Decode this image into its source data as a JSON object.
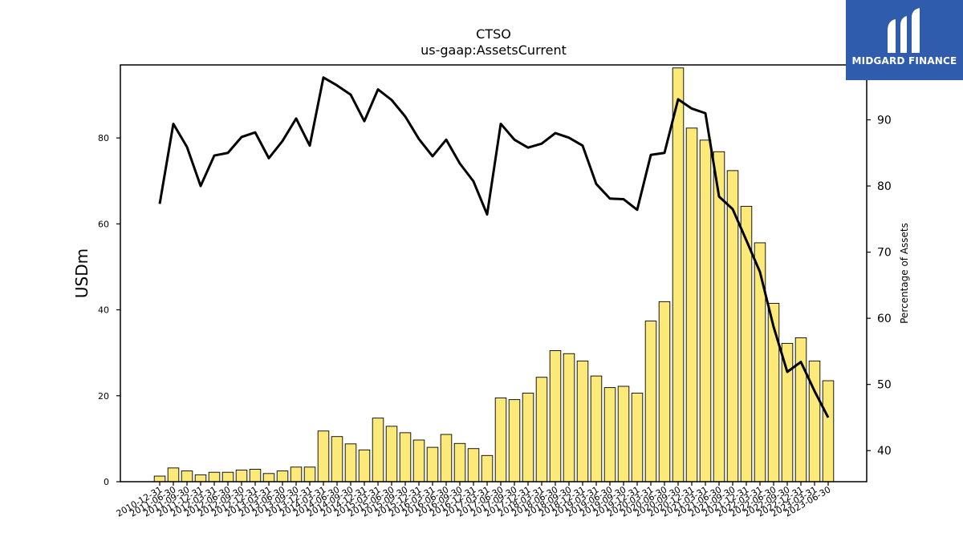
{
  "brand": {
    "name": "MIDGARD FINANCE",
    "bg_color": "#2f5cad",
    "icon": "midgard-logo-icon"
  },
  "chart_data": {
    "type": "bar",
    "title": "CTSO",
    "subtitle": "us-gaap:AssetsCurrent",
    "ylabel": "USDm",
    "y2label": "Percentage of Assets",
    "ylim": [
      0,
      97
    ],
    "y2lim": [
      35.3,
      98.3
    ],
    "yticks": [
      0,
      20,
      40,
      60,
      80
    ],
    "y2ticks": [
      40,
      50,
      60,
      70,
      80,
      90
    ],
    "grid": false,
    "bar_color": "#fbe97a",
    "bar_edge_color": "#000000",
    "line_color": "#000000",
    "categories": [
      "2010-12-31",
      "2011-06-30",
      "2011-09-30",
      "2011-12-31",
      "2012-03-31",
      "2012-06-30",
      "2012-09-30",
      "2012-12-31",
      "2013-03-31",
      "2013-06-30",
      "2013-09-30",
      "2013-12-31",
      "2014-03-31",
      "2014-06-30",
      "2014-09-30",
      "2014-12-31",
      "2015-03-31",
      "2015-06-30",
      "2015-09-30",
      "2015-12-31",
      "2016-03-31",
      "2016-06-30",
      "2016-09-30",
      "2016-12-31",
      "2017-03-31",
      "2017-06-30",
      "2017-09-30",
      "2017-12-31",
      "2018-03-31",
      "2018-06-30",
      "2018-09-30",
      "2018-12-31",
      "2019-03-31",
      "2019-06-30",
      "2019-09-30",
      "2019-12-31",
      "2020-03-31",
      "2020-06-30",
      "2020-09-30",
      "2020-12-31",
      "2021-03-31",
      "2021-06-30",
      "2021-09-30",
      "2021-12-31",
      "2022-03-31",
      "2022-06-30",
      "2022-09-30",
      "2022-12-31",
      "2023-03-31",
      "2023-06-30"
    ],
    "series": [
      {
        "name": "USDm",
        "type": "bar",
        "axis": "left",
        "values": [
          1.3,
          3.2,
          2.5,
          1.6,
          2.2,
          2.2,
          2.7,
          2.9,
          1.9,
          2.5,
          3.4,
          3.4,
          11.8,
          10.5,
          8.8,
          7.4,
          14.8,
          12.9,
          11.4,
          9.7,
          8.0,
          11.0,
          8.9,
          7.7,
          6.1,
          19.5,
          19.1,
          20.6,
          24.3,
          30.5,
          29.8,
          28.1,
          24.6,
          21.9,
          22.2,
          20.6,
          37.4,
          41.9,
          96.3,
          82.3,
          79.5,
          76.8,
          72.4,
          64.1,
          55.6,
          41.5,
          32.2,
          33.5,
          28.1,
          23.5
        ]
      },
      {
        "name": "Percentage of Assets",
        "type": "line",
        "axis": "right",
        "values": [
          77.3,
          89.4,
          85.9,
          80.0,
          84.6,
          85.0,
          87.4,
          88.1,
          84.2,
          86.8,
          90.2,
          86.1,
          96.4,
          95.2,
          93.8,
          89.8,
          94.6,
          93.0,
          90.5,
          87.1,
          84.5,
          87.0,
          83.4,
          80.7,
          75.7,
          89.4,
          87.0,
          85.8,
          86.4,
          88.0,
          87.3,
          86.1,
          80.3,
          78.1,
          78.0,
          76.4,
          84.7,
          85.0,
          93.1,
          91.7,
          91.0,
          78.4,
          76.5,
          71.8,
          67.0,
          58.7,
          51.9,
          53.4,
          49.0,
          45.0
        ]
      }
    ]
  }
}
